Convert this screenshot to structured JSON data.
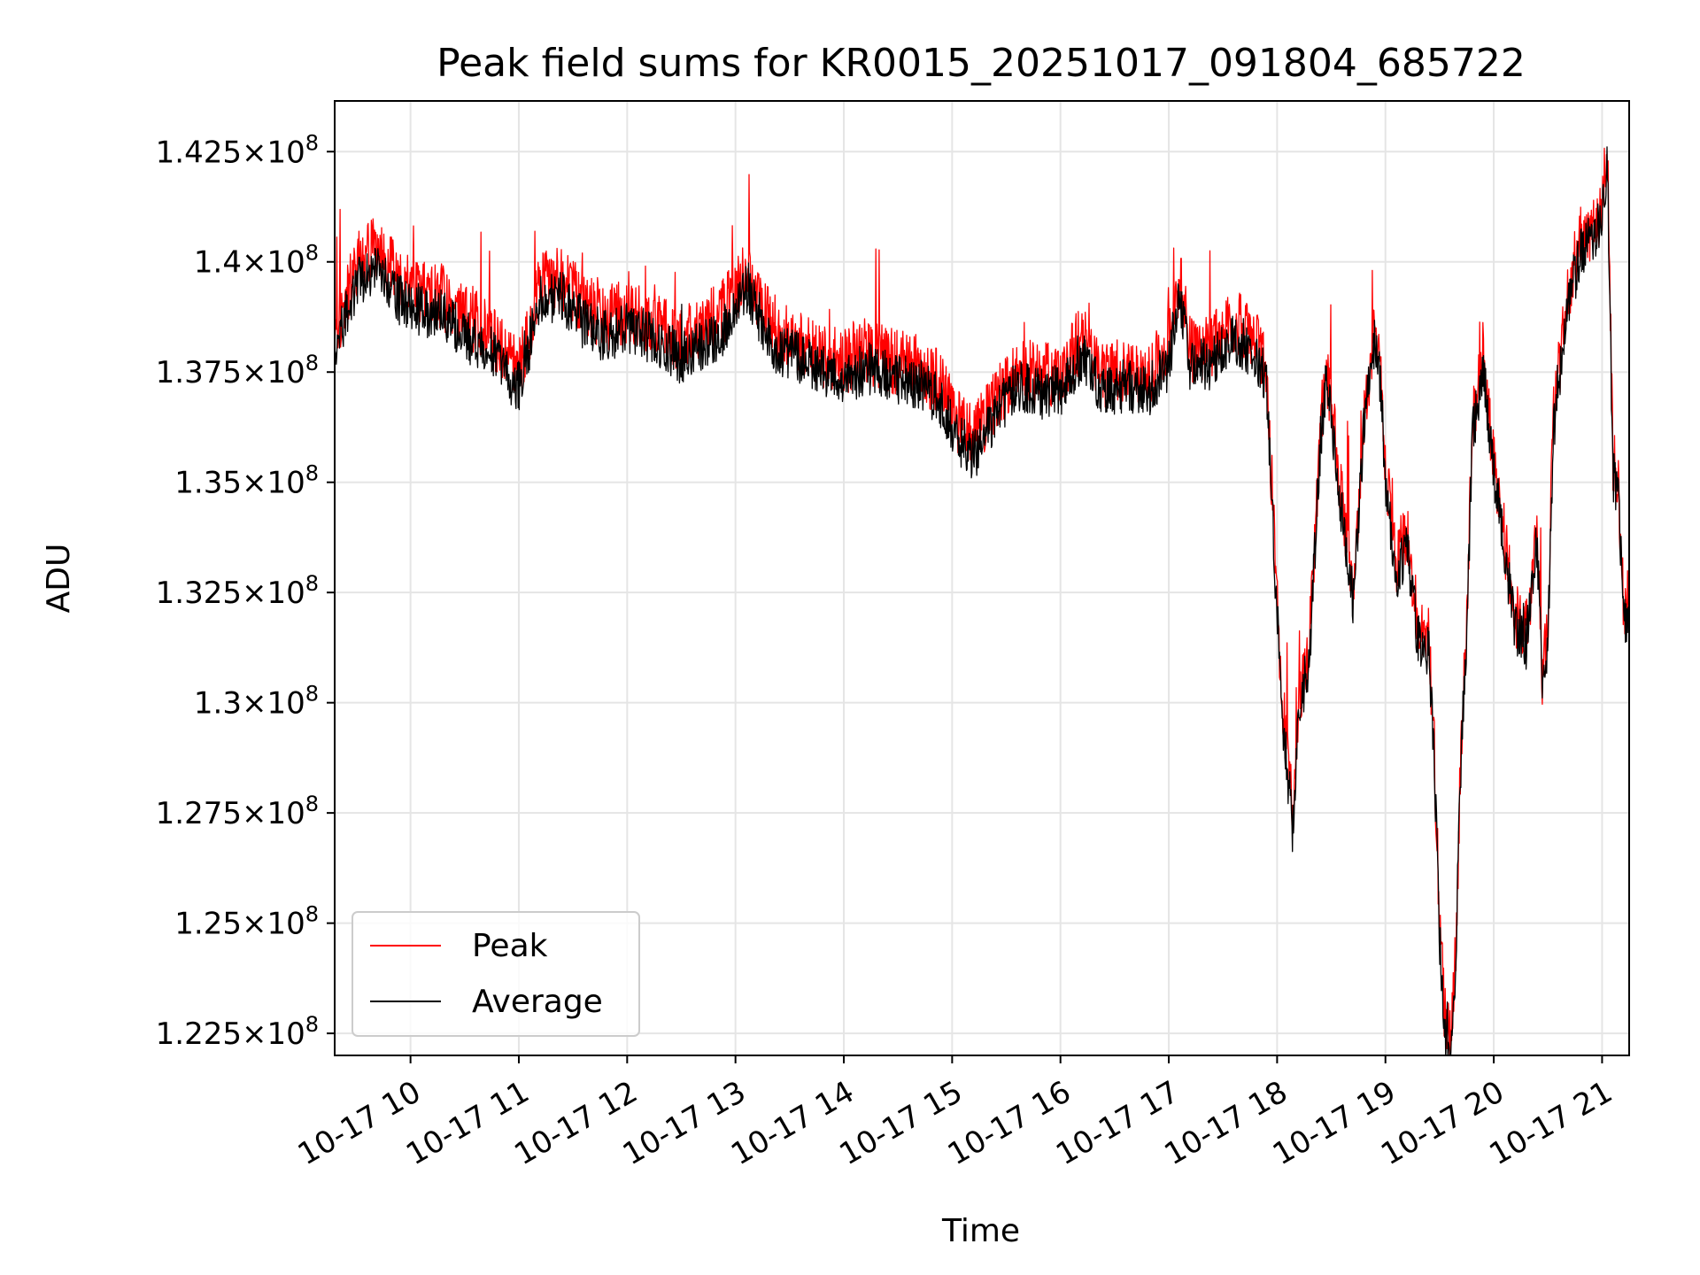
{
  "chart_data": {
    "type": "line",
    "title": "Peak field sums for KR0015_20251017_091804_685722",
    "xlabel": "Time",
    "ylabel": "ADU",
    "x_range_hours": [
      9.3,
      21.25
    ],
    "ylim": [
      122000000,
      143650000
    ],
    "y_tick_values": [
      122500000,
      125000000,
      127500000,
      130000000,
      132500000,
      135000000,
      137500000,
      140000000,
      142500000
    ],
    "y_tick_mantissas": [
      "1.225",
      "1.25",
      "1.275",
      "1.3",
      "1.325",
      "1.35",
      "1.375",
      "1.4",
      "1.425"
    ],
    "y_tick_exponent": "8",
    "x_tick_hours": [
      10,
      11,
      12,
      13,
      14,
      15,
      16,
      17,
      18,
      19,
      20,
      21
    ],
    "x_tick_labels": [
      "10-17 10",
      "10-17 11",
      "10-17 12",
      "10-17 13",
      "10-17 14",
      "10-17 15",
      "10-17 16",
      "10-17 17",
      "10-17 18",
      "10-17 19",
      "10-17 20",
      "10-17 21"
    ],
    "grid": true,
    "legend_position": "lower-left",
    "series": [
      {
        "name": "Peak",
        "color": "#ff0000",
        "anchor_hours": [
          9.3,
          9.5,
          9.7,
          9.9,
          10.1,
          10.3,
          10.5,
          10.7,
          10.9,
          11.0,
          11.2,
          11.4,
          11.6,
          11.8,
          12.0,
          12.2,
          12.4,
          12.5,
          12.7,
          12.9,
          13.1,
          13.3,
          13.4,
          13.6,
          13.8,
          14.0,
          14.2,
          14.5,
          14.7,
          14.9,
          15.05,
          15.2,
          15.4,
          15.6,
          15.8,
          16.0,
          16.2,
          16.4,
          16.6,
          16.8,
          17.0,
          17.1,
          17.2,
          17.4,
          17.6,
          17.8,
          17.9,
          17.95,
          18.0,
          18.05,
          18.1,
          18.15,
          18.2,
          18.3,
          18.4,
          18.45,
          18.5,
          18.6,
          18.7,
          18.8,
          18.9,
          18.95,
          19.0,
          19.1,
          19.2,
          19.3,
          19.4,
          19.45,
          19.5,
          19.55,
          19.6,
          19.65,
          19.7,
          19.75,
          19.8,
          19.9,
          20.0,
          20.1,
          20.2,
          20.3,
          20.4,
          20.45,
          20.5,
          20.55,
          20.6,
          20.7,
          20.8,
          20.9,
          21.0,
          21.05,
          21.1,
          21.15,
          21.2,
          21.25
        ],
        "anchor_values": [
          138300000,
          139900000,
          140400000,
          139500000,
          139300000,
          139200000,
          138700000,
          138500000,
          137800000,
          137500000,
          139500000,
          139600000,
          139000000,
          138700000,
          138900000,
          138700000,
          138400000,
          138200000,
          138500000,
          138900000,
          139800000,
          138700000,
          138400000,
          138200000,
          137900000,
          137700000,
          138000000,
          137700000,
          137600000,
          137200000,
          136400000,
          136000000,
          136900000,
          137600000,
          137400000,
          137500000,
          138300000,
          137400000,
          137600000,
          137400000,
          138100000,
          139700000,
          138000000,
          138100000,
          138700000,
          138300000,
          137600000,
          135000000,
          132200000,
          130000000,
          128600000,
          127300000,
          130000000,
          131400000,
          136200000,
          137600000,
          136800000,
          134500000,
          132600000,
          136500000,
          138500000,
          137700000,
          135300000,
          133200000,
          133800000,
          131700000,
          131500000,
          129000000,
          125000000,
          122800000,
          122500000,
          124500000,
          129300000,
          131700000,
          136300000,
          137900000,
          135500000,
          133700000,
          132000000,
          131600000,
          134000000,
          130500000,
          131800000,
          136500000,
          137500000,
          139500000,
          140500000,
          140800000,
          141200000,
          142900000,
          135500000,
          135000000,
          132000000,
          132500000
        ]
      },
      {
        "name": "Average",
        "color": "#000000",
        "anchor_hours": [
          9.3,
          9.5,
          9.7,
          9.9,
          10.1,
          10.3,
          10.5,
          10.7,
          10.9,
          11.0,
          11.2,
          11.4,
          11.6,
          11.8,
          12.0,
          12.2,
          12.4,
          12.5,
          12.7,
          12.9,
          13.1,
          13.3,
          13.4,
          13.6,
          13.8,
          14.0,
          14.2,
          14.5,
          14.7,
          14.9,
          15.05,
          15.2,
          15.4,
          15.6,
          15.8,
          16.0,
          16.2,
          16.4,
          16.6,
          16.8,
          17.0,
          17.1,
          17.2,
          17.4,
          17.6,
          17.8,
          17.9,
          17.95,
          18.0,
          18.05,
          18.1,
          18.15,
          18.2,
          18.3,
          18.4,
          18.45,
          18.5,
          18.6,
          18.7,
          18.8,
          18.9,
          18.95,
          19.0,
          19.1,
          19.2,
          19.3,
          19.4,
          19.45,
          19.5,
          19.55,
          19.6,
          19.65,
          19.7,
          19.75,
          19.8,
          19.9,
          20.0,
          20.1,
          20.2,
          20.3,
          20.4,
          20.45,
          20.5,
          20.55,
          20.6,
          20.7,
          20.8,
          20.9,
          21.0,
          21.05,
          21.1,
          21.15,
          21.2,
          21.25
        ],
        "anchor_values": [
          138000000,
          139500000,
          140000000,
          139100000,
          138900000,
          138800000,
          138300000,
          138100000,
          137400000,
          137200000,
          139100000,
          139200000,
          138600000,
          138300000,
          138500000,
          138300000,
          138000000,
          137800000,
          138100000,
          138500000,
          139400000,
          138300000,
          138000000,
          137800000,
          137500000,
          137300000,
          137600000,
          137300000,
          137200000,
          136800000,
          136000000,
          135600000,
          136500000,
          137200000,
          137000000,
          137100000,
          137900000,
          137000000,
          137200000,
          137000000,
          137700000,
          139300000,
          137600000,
          137700000,
          138300000,
          137900000,
          137200000,
          134700000,
          131900000,
          129700000,
          128300000,
          127000000,
          129700000,
          131100000,
          135900000,
          137300000,
          136500000,
          134200000,
          132300000,
          136200000,
          138200000,
          137400000,
          135000000,
          132900000,
          133500000,
          131400000,
          131200000,
          128700000,
          124700000,
          122500000,
          122200000,
          124200000,
          129000000,
          131400000,
          136000000,
          137600000,
          135200000,
          133400000,
          131700000,
          131300000,
          133700000,
          130200000,
          131500000,
          136200000,
          137200000,
          139200000,
          140200000,
          140500000,
          140900000,
          142300000,
          135200000,
          134700000,
          131700000,
          132200000
        ]
      }
    ]
  }
}
